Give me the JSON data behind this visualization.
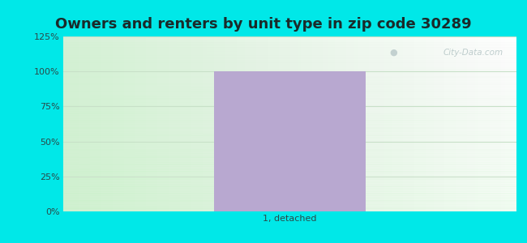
{
  "title": "Owners and renters by unit type in zip code 30289",
  "categories": [
    "1, detached"
  ],
  "values": [
    100
  ],
  "bar_color": "#b8a8d0",
  "bar_width": 0.5,
  "ylim": [
    0,
    125
  ],
  "yticks": [
    0,
    25,
    50,
    75,
    100,
    125
  ],
  "ytick_labels": [
    "0%",
    "25%",
    "50%",
    "75%",
    "100%",
    "125%"
  ],
  "bg_outer": "#00e8e8",
  "title_fontsize": 13,
  "tick_fontsize": 8,
  "watermark_text": "City-Data.com",
  "watermark_color": "#b8c8c8",
  "grid_color": "#c8e0c8",
  "xlabel_fontsize": 8,
  "title_color": "#1a2a2a",
  "tick_color": "#2a4a4a"
}
